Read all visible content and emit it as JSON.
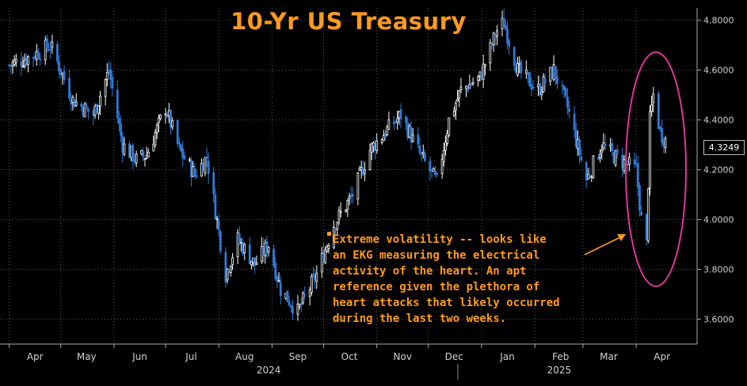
{
  "chart_data": {
    "type": "candlestick",
    "title": "10-Yr US Treasury",
    "ylim": [
      3.5,
      4.85
    ],
    "yticks": [
      "4.8000",
      "4.6000",
      "4.4000",
      "4.2000",
      "4.0000",
      "3.8000",
      "3.6000"
    ],
    "ytick_values": [
      4.8,
      4.6,
      4.4,
      4.2,
      4.0,
      3.8,
      3.6
    ],
    "x_month_labels": [
      "Apr",
      "May",
      "Jun",
      "Jul",
      "Aug",
      "Sep",
      "Oct",
      "Nov",
      "Dec",
      "Jan",
      "Feb",
      "Mar",
      "Apr"
    ],
    "x_year_labels": [
      "2024",
      "2025"
    ],
    "last_value": "4.3249",
    "series": [
      {
        "date": "2024-04-01",
        "close": 4.62
      },
      {
        "date": "2024-04-15",
        "close": 4.66
      },
      {
        "date": "2024-04-25",
        "close": 4.7
      },
      {
        "date": "2024-05-08",
        "close": 4.48
      },
      {
        "date": "2024-05-20",
        "close": 4.42
      },
      {
        "date": "2024-05-29",
        "close": 4.6
      },
      {
        "date": "2024-06-06",
        "close": 4.3
      },
      {
        "date": "2024-06-14",
        "close": 4.24
      },
      {
        "date": "2024-06-20",
        "close": 4.26
      },
      {
        "date": "2024-07-01",
        "close": 4.45
      },
      {
        "date": "2024-07-09",
        "close": 4.28
      },
      {
        "date": "2024-07-18",
        "close": 4.18
      },
      {
        "date": "2024-07-25",
        "close": 4.25
      },
      {
        "date": "2024-08-05",
        "close": 3.78
      },
      {
        "date": "2024-08-12",
        "close": 3.92
      },
      {
        "date": "2024-08-22",
        "close": 3.82
      },
      {
        "date": "2024-08-30",
        "close": 3.9
      },
      {
        "date": "2024-09-06",
        "close": 3.72
      },
      {
        "date": "2024-09-16",
        "close": 3.63
      },
      {
        "date": "2024-09-27",
        "close": 3.78
      },
      {
        "date": "2024-10-07",
        "close": 3.98
      },
      {
        "date": "2024-10-18",
        "close": 4.1
      },
      {
        "date": "2024-10-28",
        "close": 4.28
      },
      {
        "date": "2024-11-07",
        "close": 4.36
      },
      {
        "date": "2024-11-15",
        "close": 4.42
      },
      {
        "date": "2024-11-27",
        "close": 4.25
      },
      {
        "date": "2024-12-06",
        "close": 4.15
      },
      {
        "date": "2024-12-13",
        "close": 4.4
      },
      {
        "date": "2024-12-20",
        "close": 4.52
      },
      {
        "date": "2024-12-31",
        "close": 4.57
      },
      {
        "date": "2025-01-10",
        "close": 4.76
      },
      {
        "date": "2025-01-14",
        "close": 4.79
      },
      {
        "date": "2025-01-22",
        "close": 4.6
      },
      {
        "date": "2025-02-03",
        "close": 4.52
      },
      {
        "date": "2025-02-12",
        "close": 4.6
      },
      {
        "date": "2025-02-20",
        "close": 4.45
      },
      {
        "date": "2025-03-03",
        "close": 4.16
      },
      {
        "date": "2025-03-12",
        "close": 4.3
      },
      {
        "date": "2025-03-20",
        "close": 4.25
      },
      {
        "date": "2025-04-01",
        "close": 4.2
      },
      {
        "date": "2025-04-04",
        "close": 4.0
      },
      {
        "date": "2025-04-07",
        "close": 3.9
      },
      {
        "date": "2025-04-09",
        "close": 4.4
      },
      {
        "date": "2025-04-11",
        "close": 4.5
      },
      {
        "date": "2025-04-15",
        "close": 4.35
      },
      {
        "date": "2025-04-18",
        "close": 4.32
      }
    ],
    "annotation": "Extreme volatility -- looks like an EKG measuring the electrical activity of the heart. An apt reference given the plethora of heart attacks that likely occurred during the last two weeks."
  },
  "annotation_lines": [
    "Extreme volatility -- looks like",
    "an EKG measuring the electrical",
    "activity of the heart. An apt",
    "reference given the plethora of",
    "heart attacks that likely occurred",
    "during the last two weeks."
  ],
  "colors": {
    "up": "#ffffff",
    "down": "#2f79d6",
    "title": "#ff9a1f",
    "annotation": "#ff9a1f",
    "ellipse": "#e0359b",
    "grid": "#5a5a5a",
    "axis_text": "#d0d0d0"
  }
}
